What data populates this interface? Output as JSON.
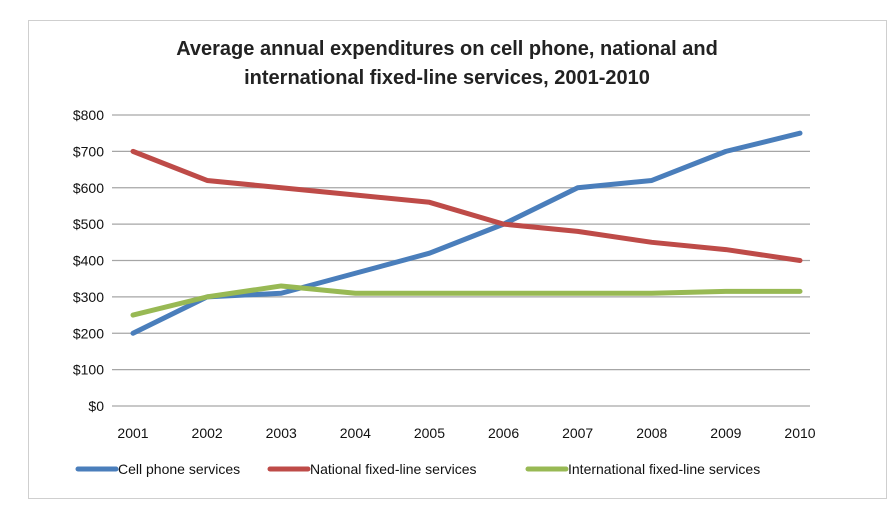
{
  "chart_data": {
    "type": "line",
    "title": "Average annual expenditures on cell phone, national and international fixed-line services, 2001-2010",
    "title_lines": [
      "Average annual expenditures on cell phone, national and",
      "international fixed-line services, 2001-2010"
    ],
    "xlabel": "",
    "ylabel": "",
    "categories": [
      "2001",
      "2002",
      "2003",
      "2004",
      "2005",
      "2006",
      "2007",
      "2008",
      "2009",
      "2010"
    ],
    "ylim": [
      0,
      800
    ],
    "yticks": [
      "$0",
      "$100",
      "$200",
      "$300",
      "$400",
      "$500",
      "$600",
      "$700",
      "$800"
    ],
    "grid": true,
    "legend": "bottom",
    "series": [
      {
        "name": "Cell phone services",
        "color": "#4a7ebb",
        "values": [
          200,
          300,
          310,
          365,
          420,
          500,
          600,
          620,
          700,
          750
        ]
      },
      {
        "name": "National fixed-line services",
        "color": "#be4b48",
        "values": [
          700,
          620,
          600,
          580,
          560,
          500,
          480,
          450,
          430,
          400
        ]
      },
      {
        "name": "International fixed-line services",
        "color": "#98b954",
        "values": [
          250,
          300,
          330,
          310,
          310,
          310,
          310,
          310,
          315,
          315
        ]
      }
    ]
  }
}
